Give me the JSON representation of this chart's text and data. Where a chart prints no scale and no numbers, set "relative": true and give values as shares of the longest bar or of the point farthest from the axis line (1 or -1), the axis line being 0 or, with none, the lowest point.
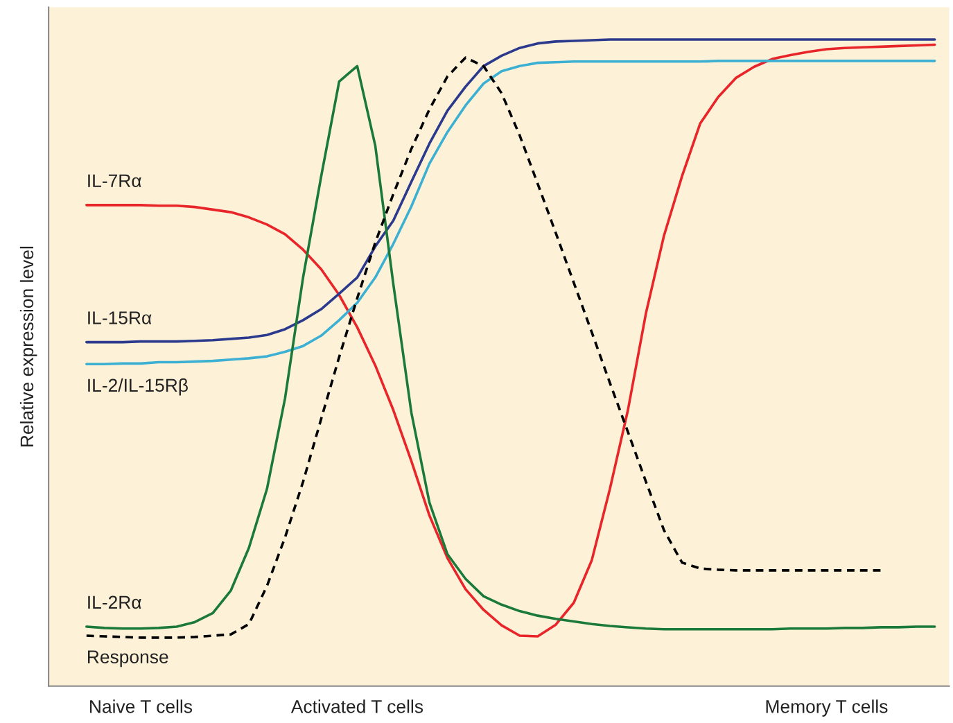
{
  "chart_data": {
    "type": "line",
    "relative": true,
    "ylabel": "Relative expression level",
    "categories": [
      null,
      null,
      null,
      "Naive T cells",
      null,
      null,
      null,
      null,
      null,
      null,
      null,
      null,
      null,
      null,
      null,
      "Activated T cells",
      null,
      null,
      null,
      null,
      null,
      null,
      null,
      null,
      null,
      null,
      null,
      null,
      null,
      null,
      null,
      null,
      null,
      null,
      null,
      null,
      null,
      null,
      null,
      null,
      null,
      "Memory T cells",
      null,
      null,
      null,
      null,
      null,
      null
    ],
    "grid": false,
    "legend": false,
    "marker": "none",
    "series": [
      {
        "name": "IL-7Rα",
        "color": "#e8262a",
        "line_style": "solid",
        "values": [
          0.744,
          0.744,
          0.744,
          0.744,
          0.743,
          0.743,
          0.741,
          0.737,
          0.733,
          0.725,
          0.714,
          0.699,
          0.675,
          0.645,
          0.605,
          0.555,
          0.496,
          0.427,
          0.348,
          0.264,
          0.198,
          0.15,
          0.118,
          0.094,
          0.078,
          0.077,
          0.095,
          0.129,
          0.195,
          0.305,
          0.427,
          0.577,
          0.697,
          0.789,
          0.87,
          0.911,
          0.941,
          0.958,
          0.97,
          0.976,
          0.981,
          0.985,
          0.987,
          0.988,
          0.989,
          0.99,
          0.991,
          0.992
        ]
      },
      {
        "name": "IL-15Rα",
        "color": "#2b3a8c",
        "line_style": "solid",
        "values": [
          0.532,
          0.532,
          0.532,
          0.533,
          0.533,
          0.533,
          0.534,
          0.535,
          0.537,
          0.539,
          0.543,
          0.552,
          0.566,
          0.583,
          0.607,
          0.632,
          0.68,
          0.72,
          0.78,
          0.839,
          0.89,
          0.927,
          0.959,
          0.975,
          0.987,
          0.994,
          0.997,
          0.998,
          0.999,
          1,
          1,
          1,
          1,
          1,
          1,
          1,
          1,
          1,
          1,
          1,
          1,
          1,
          1,
          1,
          1,
          1,
          1,
          1
        ]
      },
      {
        "name": "IL-2/IL-15Rβ",
        "color": "#3cb0d2",
        "line_style": "solid",
        "values": [
          0.498,
          0.498,
          0.499,
          0.499,
          0.501,
          0.501,
          0.502,
          0.503,
          0.505,
          0.507,
          0.51,
          0.517,
          0.526,
          0.542,
          0.566,
          0.593,
          0.632,
          0.684,
          0.742,
          0.808,
          0.857,
          0.898,
          0.932,
          0.951,
          0.959,
          0.964,
          0.965,
          0.966,
          0.966,
          0.966,
          0.966,
          0.966,
          0.966,
          0.966,
          0.966,
          0.967,
          0.967,
          0.967,
          0.967,
          0.967,
          0.967,
          0.967,
          0.967,
          0.967,
          0.967,
          0.967,
          0.967,
          0.967
        ]
      },
      {
        "name": "IL-2Rα",
        "color": "#1b7a3a",
        "line_style": "solid",
        "values": [
          0.092,
          0.09,
          0.089,
          0.089,
          0.09,
          0.092,
          0.099,
          0.113,
          0.148,
          0.214,
          0.305,
          0.445,
          0.632,
          0.788,
          0.935,
          0.959,
          0.836,
          0.622,
          0.423,
          0.284,
          0.204,
          0.166,
          0.139,
          0.126,
          0.116,
          0.109,
          0.104,
          0.1,
          0.096,
          0.093,
          0.091,
          0.089,
          0.088,
          0.088,
          0.088,
          0.088,
          0.088,
          0.088,
          0.088,
          0.089,
          0.089,
          0.089,
          0.09,
          0.09,
          0.091,
          0.091,
          0.092,
          0.092
        ]
      },
      {
        "name": "Response",
        "color": "#000000",
        "line_style": "dashed",
        "values": [
          0.078,
          0.077,
          0.076,
          0.075,
          0.075,
          0.075,
          0.076,
          0.078,
          0.08,
          0.096,
          0.155,
          0.23,
          0.316,
          0.413,
          0.509,
          0.6,
          0.686,
          0.761,
          0.831,
          0.892,
          0.943,
          0.972,
          0.959,
          0.917,
          0.852,
          0.777,
          0.701,
          0.624,
          0.547,
          0.469,
          0.393,
          0.316,
          0.241,
          0.191,
          0.182,
          0.18,
          0.179,
          0.179,
          0.179,
          0.179,
          0.179,
          0.179,
          0.179,
          0.179,
          0.179,
          null,
          null,
          null
        ]
      }
    ]
  }
}
